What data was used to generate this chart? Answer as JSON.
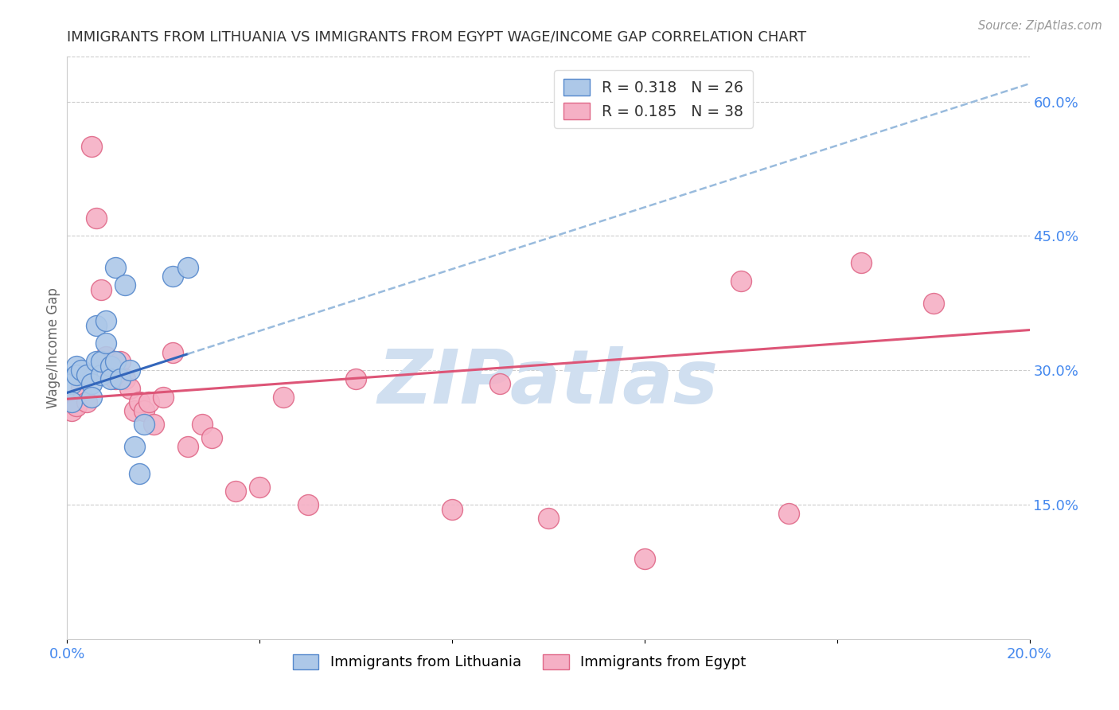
{
  "title": "IMMIGRANTS FROM LITHUANIA VS IMMIGRANTS FROM EGYPT WAGE/INCOME GAP CORRELATION CHART",
  "source": "Source: ZipAtlas.com",
  "ylabel": "Wage/Income Gap",
  "xlim": [
    0.0,
    0.2
  ],
  "ylim": [
    0.0,
    0.65
  ],
  "yticks_right": [
    0.15,
    0.3,
    0.45,
    0.6
  ],
  "ytick_labels_right": [
    "15.0%",
    "30.0%",
    "45.0%",
    "60.0%"
  ],
  "lithuania_R": 0.318,
  "lithuania_N": 26,
  "egypt_R": 0.185,
  "egypt_N": 38,
  "lithuania_color": "#adc8e8",
  "lithuania_edge": "#5588cc",
  "egypt_color": "#f5b0c5",
  "egypt_edge": "#e06888",
  "lithuania_line_color": "#3366bb",
  "egypt_line_color": "#dd5577",
  "watermark": "ZIPatlas",
  "watermark_color": "#d0dff0",
  "background": "#ffffff",
  "grid_color": "#cccccc",
  "title_color": "#333333",
  "axis_label_color": "#4488ee",
  "lithuania_x": [
    0.001,
    0.001,
    0.002,
    0.002,
    0.003,
    0.004,
    0.005,
    0.005,
    0.006,
    0.006,
    0.007,
    0.007,
    0.008,
    0.008,
    0.009,
    0.009,
    0.01,
    0.01,
    0.011,
    0.012,
    0.013,
    0.014,
    0.015,
    0.016,
    0.022,
    0.025
  ],
  "lithuania_y": [
    0.285,
    0.265,
    0.305,
    0.295,
    0.3,
    0.295,
    0.285,
    0.27,
    0.31,
    0.35,
    0.295,
    0.31,
    0.355,
    0.33,
    0.305,
    0.29,
    0.31,
    0.415,
    0.29,
    0.395,
    0.3,
    0.215,
    0.185,
    0.24,
    0.405,
    0.415
  ],
  "egypt_x": [
    0.001,
    0.001,
    0.002,
    0.003,
    0.004,
    0.005,
    0.006,
    0.007,
    0.008,
    0.009,
    0.01,
    0.01,
    0.011,
    0.012,
    0.013,
    0.014,
    0.015,
    0.016,
    0.017,
    0.018,
    0.02,
    0.022,
    0.025,
    0.028,
    0.03,
    0.035,
    0.04,
    0.045,
    0.05,
    0.06,
    0.08,
    0.09,
    0.1,
    0.12,
    0.14,
    0.15,
    0.165,
    0.18
  ],
  "egypt_y": [
    0.265,
    0.255,
    0.26,
    0.28,
    0.265,
    0.55,
    0.47,
    0.39,
    0.315,
    0.295,
    0.29,
    0.3,
    0.31,
    0.29,
    0.28,
    0.255,
    0.265,
    0.255,
    0.265,
    0.24,
    0.27,
    0.32,
    0.215,
    0.24,
    0.225,
    0.165,
    0.17,
    0.27,
    0.15,
    0.29,
    0.145,
    0.285,
    0.135,
    0.09,
    0.4,
    0.14,
    0.42,
    0.375
  ],
  "lit_trend_x0": 0.0,
  "lit_trend_y0": 0.275,
  "lit_trend_x1": 0.2,
  "lit_trend_y1": 0.62,
  "egypt_trend_x0": 0.0,
  "egypt_trend_y0": 0.268,
  "egypt_trend_x1": 0.2,
  "egypt_trend_y1": 0.345
}
